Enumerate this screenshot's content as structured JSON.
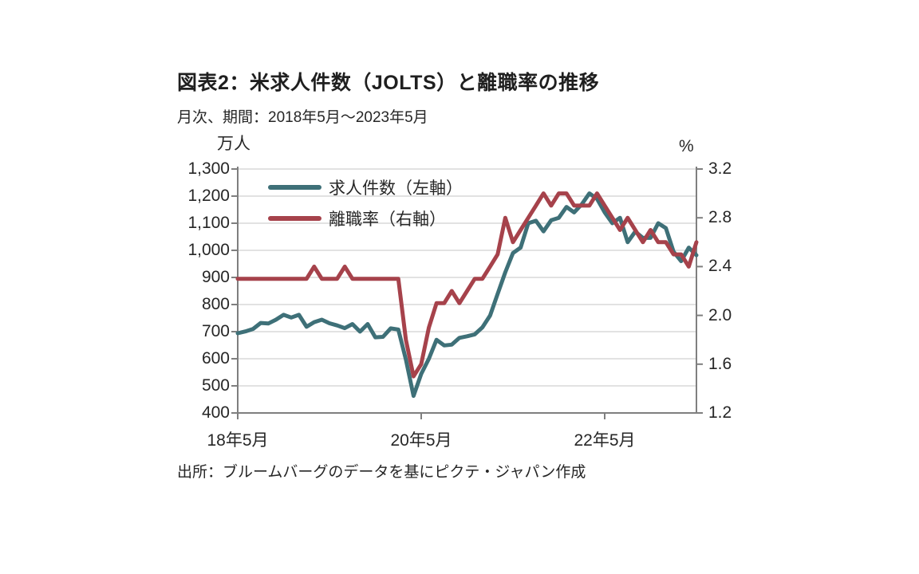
{
  "header": {
    "title": "図表2：米求人件数（JOLTS）と離職率の推移",
    "subtitle": "月次、期間：2018年5月～2023年5月"
  },
  "footer": {
    "source": "出所：ブルームバーグのデータを基にピクテ・ジャパン作成"
  },
  "chart_data": {
    "type": "line",
    "title": "米求人件数（JOLTS）と離職率の推移",
    "frequency": "月次",
    "period": {
      "start": "2018年5月",
      "end": "2023年5月"
    },
    "grid": "horizontal",
    "legend_position": "top-left-inside",
    "colors": {
      "grid": "#D9D9D9",
      "axis": "#7F7F7F",
      "text": "#262626"
    },
    "left_axis": {
      "label": "万人",
      "min": 400,
      "max": 1300,
      "tick_labels": [
        "1,300",
        "1,200",
        "1,100",
        "1,000",
        "900",
        "800",
        "700",
        "600",
        "500",
        "400"
      ]
    },
    "right_axis": {
      "label": "%",
      "min": 1.2,
      "max": 3.2,
      "tick_labels": [
        "3.2",
        "2.8",
        "2.4",
        "2.0",
        "1.6",
        "1.2"
      ]
    },
    "x_axis": {
      "points": 61,
      "unit": "month",
      "tick_labels": [
        {
          "label": "18年5月",
          "index": 0
        },
        {
          "label": "20年5月",
          "index": 24
        },
        {
          "label": "22年5月",
          "index": 48
        }
      ]
    },
    "series": [
      {
        "id": "job-openings",
        "name": "求人件数（左軸）",
        "axis": "left",
        "color": "#3E7078",
        "values": [
          694,
          701,
          710,
          732,
          730,
          744,
          762,
          752,
          762,
          718,
          735,
          744,
          731,
          723,
          713,
          728,
          700,
          728,
          679,
          681,
          712,
          708,
          597,
          463,
          544,
          600,
          670,
          649,
          652,
          677,
          683,
          690,
          716,
          759,
          839,
          919,
          990,
          1010,
          1100,
          1109,
          1070,
          1111,
          1120,
          1160,
          1140,
          1170,
          1210,
          1190,
          1140,
          1100,
          1120,
          1030,
          1069,
          1046,
          1046,
          1100,
          1082,
          995,
          960,
          1010,
          982
        ]
      },
      {
        "id": "quit-rate",
        "name": "離職率（右軸）",
        "axis": "right",
        "color": "#A6424B",
        "values": [
          2.3,
          2.3,
          2.3,
          2.3,
          2.3,
          2.3,
          2.3,
          2.3,
          2.3,
          2.3,
          2.4,
          2.3,
          2.3,
          2.3,
          2.4,
          2.3,
          2.3,
          2.3,
          2.3,
          2.3,
          2.3,
          2.3,
          1.8,
          1.5,
          1.6,
          1.9,
          2.1,
          2.1,
          2.2,
          2.1,
          2.2,
          2.3,
          2.3,
          2.4,
          2.5,
          2.8,
          2.6,
          2.7,
          2.8,
          2.9,
          3.0,
          2.9,
          3.0,
          3.0,
          2.9,
          2.9,
          2.9,
          3.0,
          2.9,
          2.8,
          2.7,
          2.8,
          2.7,
          2.6,
          2.7,
          2.6,
          2.6,
          2.5,
          2.5,
          2.4,
          2.6
        ]
      }
    ]
  }
}
